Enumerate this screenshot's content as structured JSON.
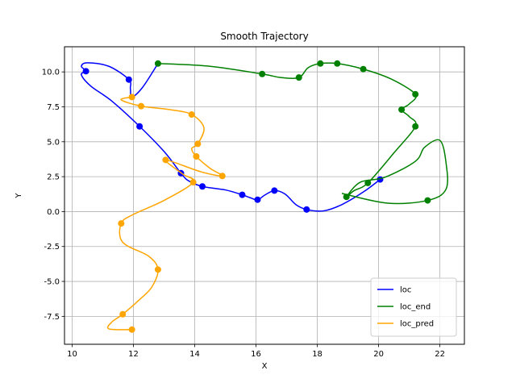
{
  "chart_data": {
    "type": "line",
    "title": "Smooth Trajectory",
    "xlabel": "X",
    "ylabel": "Y",
    "xlim": [
      9.75,
      22.8
    ],
    "ylim": [
      -9.5,
      11.8
    ],
    "xticks": [
      10,
      12,
      14,
      16,
      18,
      20,
      22
    ],
    "yticks": [
      -7.5,
      -5.0,
      -2.5,
      0.0,
      2.5,
      5.0,
      7.5,
      10.0
    ],
    "grid": true,
    "legend_position": "lower right",
    "series": [
      {
        "name": "loc",
        "color": "#0000ff",
        "points": [
          [
            20.05,
            2.3
          ],
          [
            17.65,
            0.15
          ],
          [
            16.6,
            1.5
          ],
          [
            16.05,
            0.85
          ],
          [
            15.55,
            1.2
          ],
          [
            14.25,
            1.8
          ],
          [
            13.55,
            2.75
          ],
          [
            12.2,
            6.1
          ],
          [
            11.85,
            9.45
          ],
          [
            10.45,
            10.05
          ]
        ],
        "curve": [
          [
            20.05,
            2.3
          ],
          [
            19.5,
            1.4
          ],
          [
            18.8,
            0.5
          ],
          [
            18.2,
            0.05
          ],
          [
            17.65,
            0.15
          ],
          [
            17.3,
            0.5
          ],
          [
            16.95,
            1.25
          ],
          [
            16.6,
            1.5
          ],
          [
            16.3,
            1.2
          ],
          [
            16.05,
            0.85
          ],
          [
            15.8,
            1.0
          ],
          [
            15.55,
            1.2
          ],
          [
            15.0,
            1.55
          ],
          [
            14.25,
            1.8
          ],
          [
            13.8,
            2.2
          ],
          [
            13.55,
            2.75
          ],
          [
            13.0,
            4.3
          ],
          [
            12.2,
            6.1
          ],
          [
            11.3,
            7.9
          ],
          [
            10.6,
            9.0
          ],
          [
            10.3,
            9.8
          ],
          [
            10.45,
            10.05
          ],
          [
            10.3,
            10.4
          ],
          [
            10.5,
            10.65
          ],
          [
            11.2,
            10.4
          ],
          [
            11.85,
            9.45
          ],
          [
            11.9,
            8.8
          ],
          [
            11.95,
            8.2
          ],
          [
            12.3,
            8.9
          ],
          [
            12.8,
            10.6
          ]
        ]
      },
      {
        "name": "loc_end",
        "color": "#008000",
        "points": [
          [
            12.8,
            10.6
          ],
          [
            16.2,
            9.85
          ],
          [
            17.4,
            9.6
          ],
          [
            18.1,
            10.6
          ],
          [
            18.65,
            10.6
          ],
          [
            19.5,
            10.2
          ],
          [
            21.2,
            8.4
          ],
          [
            20.75,
            7.3
          ],
          [
            21.2,
            6.1
          ],
          [
            19.65,
            2.05
          ],
          [
            18.95,
            1.05
          ],
          [
            21.6,
            0.8
          ]
        ],
        "curve": [
          [
            12.8,
            10.6
          ],
          [
            14.5,
            10.4
          ],
          [
            16.2,
            9.85
          ],
          [
            16.8,
            9.6
          ],
          [
            17.4,
            9.6
          ],
          [
            17.7,
            10.3
          ],
          [
            18.1,
            10.6
          ],
          [
            18.65,
            10.6
          ],
          [
            19.5,
            10.2
          ],
          [
            20.4,
            9.5
          ],
          [
            21.2,
            8.4
          ],
          [
            21.0,
            7.7
          ],
          [
            20.75,
            7.3
          ],
          [
            21.0,
            6.8
          ],
          [
            21.2,
            6.1
          ],
          [
            20.5,
            4.2
          ],
          [
            19.65,
            2.05
          ],
          [
            19.2,
            1.5
          ],
          [
            18.95,
            1.05
          ],
          [
            19.4,
            2.1
          ],
          [
            20.2,
            2.45
          ],
          [
            21.2,
            3.6
          ],
          [
            21.5,
            4.6
          ],
          [
            22.0,
            5.1
          ],
          [
            22.2,
            3.5
          ],
          [
            22.2,
            1.6
          ],
          [
            21.6,
            0.8
          ],
          [
            20.3,
            0.6
          ],
          [
            18.8,
            1.3
          ]
        ]
      },
      {
        "name": "loc_pred",
        "color": "#ffa500",
        "points": [
          [
            11.95,
            8.2
          ],
          [
            12.25,
            7.55
          ],
          [
            13.9,
            6.95
          ],
          [
            14.1,
            4.85
          ],
          [
            14.05,
            3.95
          ],
          [
            14.9,
            2.55
          ],
          [
            13.05,
            3.7
          ],
          [
            13.95,
            2.1
          ],
          [
            11.6,
            -0.85
          ],
          [
            12.8,
            -4.15
          ],
          [
            11.65,
            -7.35
          ],
          [
            11.95,
            -8.45
          ]
        ],
        "curve": [
          [
            11.95,
            8.2
          ],
          [
            11.6,
            8.0
          ],
          [
            12.25,
            7.55
          ],
          [
            13.2,
            7.3
          ],
          [
            13.9,
            6.95
          ],
          [
            14.3,
            6.0
          ],
          [
            14.1,
            4.85
          ],
          [
            13.9,
            4.5
          ],
          [
            14.05,
            3.95
          ],
          [
            14.5,
            3.1
          ],
          [
            14.9,
            2.55
          ],
          [
            14.2,
            2.85
          ],
          [
            13.05,
            3.7
          ],
          [
            13.6,
            2.7
          ],
          [
            13.95,
            2.1
          ],
          [
            13.0,
            0.8
          ],
          [
            12.0,
            -0.2
          ],
          [
            11.6,
            -0.85
          ],
          [
            11.65,
            -2.2
          ],
          [
            12.5,
            -3.2
          ],
          [
            12.8,
            -4.15
          ],
          [
            12.6,
            -5.4
          ],
          [
            12.2,
            -6.3
          ],
          [
            11.65,
            -7.35
          ],
          [
            11.3,
            -7.9
          ],
          [
            11.2,
            -8.4
          ],
          [
            11.95,
            -8.45
          ]
        ]
      }
    ]
  }
}
